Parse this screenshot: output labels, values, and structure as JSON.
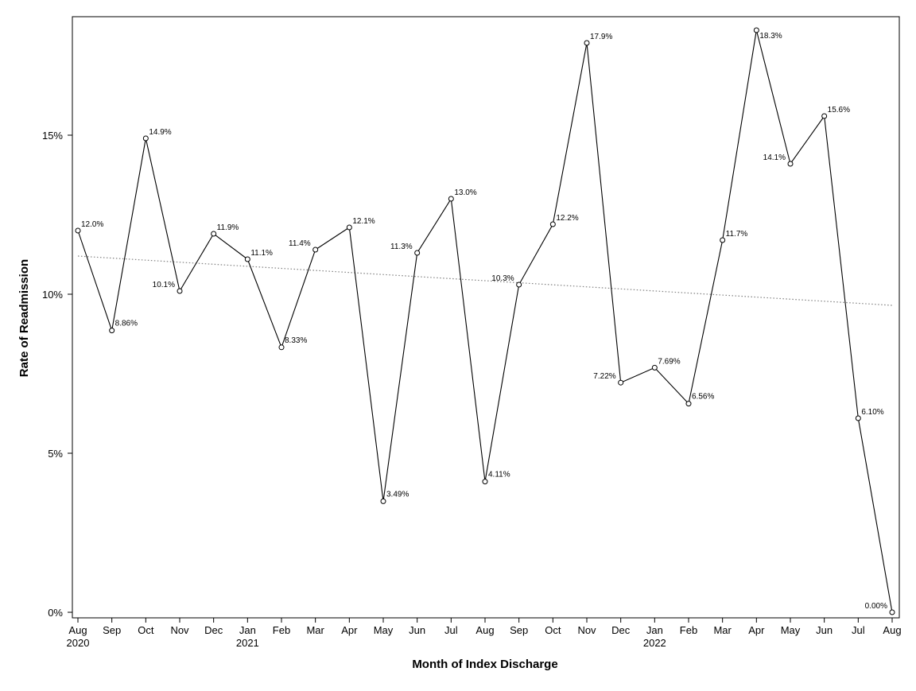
{
  "chart_data": {
    "type": "line",
    "xlabel": "Month of Index Discharge",
    "ylabel": "Rate of Readmission",
    "ylim": [
      0,
      18.5
    ],
    "y_ticks": [
      0,
      5,
      10,
      15
    ],
    "y_tick_labels": [
      "0%",
      "5%",
      "10%",
      "15%"
    ],
    "grid": false,
    "legend": "none",
    "line_color": "#000000",
    "trend_color": "#808080",
    "points": [
      {
        "x": "2020-08",
        "month": "Aug",
        "year": "2020",
        "value": 12.0,
        "label": "12.0%"
      },
      {
        "x": "2020-09",
        "month": "Sep",
        "year": "",
        "value": 8.86,
        "label": "8.86%"
      },
      {
        "x": "2020-10",
        "month": "Oct",
        "year": "",
        "value": 14.9,
        "label": "14.9%"
      },
      {
        "x": "2020-11",
        "month": "Nov",
        "year": "",
        "value": 10.1,
        "label": "10.1%"
      },
      {
        "x": "2020-12",
        "month": "Dec",
        "year": "",
        "value": 11.9,
        "label": "11.9%"
      },
      {
        "x": "2021-01",
        "month": "Jan",
        "year": "2021",
        "value": 11.1,
        "label": "11.1%"
      },
      {
        "x": "2021-02",
        "month": "Feb",
        "year": "",
        "value": 8.33,
        "label": "8.33%"
      },
      {
        "x": "2021-03",
        "month": "Mar",
        "year": "",
        "value": 11.4,
        "label": "11.4%"
      },
      {
        "x": "2021-04",
        "month": "Apr",
        "year": "",
        "value": 12.1,
        "label": "12.1%"
      },
      {
        "x": "2021-05",
        "month": "May",
        "year": "",
        "value": 3.49,
        "label": "3.49%"
      },
      {
        "x": "2021-06",
        "month": "Jun",
        "year": "",
        "value": 11.3,
        "label": "11.3%"
      },
      {
        "x": "2021-07",
        "month": "Jul",
        "year": "",
        "value": 13.0,
        "label": "13.0%"
      },
      {
        "x": "2021-08",
        "month": "Aug",
        "year": "",
        "value": 4.11,
        "label": "4.11%"
      },
      {
        "x": "2021-09",
        "month": "Sep",
        "year": "",
        "value": 10.3,
        "label": "10.3%"
      },
      {
        "x": "2021-10",
        "month": "Oct",
        "year": "",
        "value": 12.2,
        "label": "12.2%"
      },
      {
        "x": "2021-11",
        "month": "Nov",
        "year": "",
        "value": 17.9,
        "label": "17.9%"
      },
      {
        "x": "2021-12",
        "month": "Dec",
        "year": "",
        "value": 7.22,
        "label": "7.22%"
      },
      {
        "x": "2022-01",
        "month": "Jan",
        "year": "2022",
        "value": 7.69,
        "label": "7.69%"
      },
      {
        "x": "2022-02",
        "month": "Feb",
        "year": "",
        "value": 6.56,
        "label": "6.56%"
      },
      {
        "x": "2022-03",
        "month": "Mar",
        "year": "",
        "value": 11.7,
        "label": "11.7%"
      },
      {
        "x": "2022-04",
        "month": "Apr",
        "year": "",
        "value": 18.3,
        "label": "18.3%"
      },
      {
        "x": "2022-05",
        "month": "May",
        "year": "",
        "value": 14.1,
        "label": "14.1%"
      },
      {
        "x": "2022-06",
        "month": "Jun",
        "year": "",
        "value": 15.6,
        "label": "15.6%"
      },
      {
        "x": "2022-07",
        "month": "Jul",
        "year": "",
        "value": 6.1,
        "label": "6.10%"
      },
      {
        "x": "2022-08",
        "month": "Aug",
        "year": "",
        "value": 0.0,
        "label": "0.00%"
      }
    ],
    "trend_line": {
      "start": {
        "x": "2020-08",
        "y": 11.2
      },
      "end": {
        "x": "2022-08",
        "y": 9.65
      }
    }
  }
}
